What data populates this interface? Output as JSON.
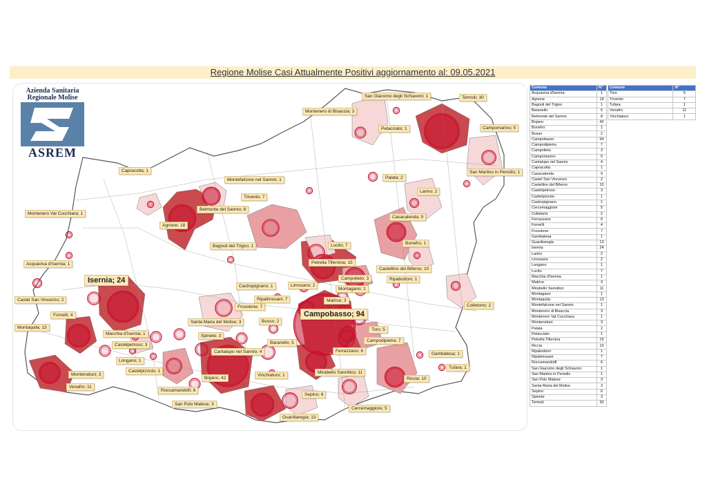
{
  "title": "Regione Molise Casi Attualmente Positivi aggiornamento al: 09.05.2021",
  "logo": {
    "line1": "Azienda Sanitaria",
    "line2": "Regionale Molise",
    "name": "ASREM"
  },
  "table": {
    "col_comune": "Comune",
    "col_n": "N°"
  },
  "comuni": [
    {
      "name": "Acquaviva d'Isernia",
      "n": 1
    },
    {
      "name": "Agnone",
      "n": 18
    },
    {
      "name": "Bagnoli del Trigno",
      "n": 1
    },
    {
      "name": "Baranello",
      "n": 5
    },
    {
      "name": "Belmonte del Sannio",
      "n": 8
    },
    {
      "name": "Bojano",
      "n": 42
    },
    {
      "name": "Bonefro",
      "n": 1
    },
    {
      "name": "Busso",
      "n": 2
    },
    {
      "name": "Campobasso",
      "n": 94
    },
    {
      "name": "Campodipietra",
      "n": 7
    },
    {
      "name": "Campolieto",
      "n": 3
    },
    {
      "name": "Campomarino",
      "n": 5
    },
    {
      "name": "Cantalupo nel Sannio",
      "n": 4
    },
    {
      "name": "Capracotta",
      "n": 1
    },
    {
      "name": "Casacalenda",
      "n": 9
    },
    {
      "name": "Castel San Vincenzo",
      "n": 2
    },
    {
      "name": "Castellino del Biferno",
      "n": 10
    },
    {
      "name": "Castelpetroso",
      "n": 3
    },
    {
      "name": "Castelpizzuto",
      "n": 1
    },
    {
      "name": "Castropignano",
      "n": 1
    },
    {
      "name": "Cercemaggiore",
      "n": 5
    },
    {
      "name": "Colletorto",
      "n": 2
    },
    {
      "name": "Ferrazzano",
      "n": 6
    },
    {
      "name": "Fornelli",
      "n": 4
    },
    {
      "name": "Frosolone",
      "n": 7
    },
    {
      "name": "Gambatesa",
      "n": 1
    },
    {
      "name": "Guardiaregia",
      "n": 13
    },
    {
      "name": "Isernia",
      "n": 24
    },
    {
      "name": "Larino",
      "n": 2
    },
    {
      "name": "Limosano",
      "n": 2
    },
    {
      "name": "Longano",
      "n": 1
    },
    {
      "name": "Lucito",
      "n": 7
    },
    {
      "name": "Macchia d'Isernia",
      "n": 1
    },
    {
      "name": "Matrice",
      "n": 3
    },
    {
      "name": "Mirabello Sannitico",
      "n": 11
    },
    {
      "name": "Montagano",
      "n": 1
    },
    {
      "name": "Montaquila",
      "n": 13
    },
    {
      "name": "Montefalcone nel Sannio",
      "n": 1
    },
    {
      "name": "Montenero di Bisaccia",
      "n": 3
    },
    {
      "name": "Montenero Val Cocchiara",
      "n": 1
    },
    {
      "name": "Monteroduni",
      "n": 3
    },
    {
      "name": "Palata",
      "n": 2
    },
    {
      "name": "Petacciato",
      "n": 1
    },
    {
      "name": "Petrella Tifernina",
      "n": 15
    },
    {
      "name": "Riccia",
      "n": 10
    },
    {
      "name": "Ripabottoni",
      "n": 1
    },
    {
      "name": "Ripalimosani",
      "n": 7
    },
    {
      "name": "Roccamandolfi",
      "n": 6
    },
    {
      "name": "San Giacomo degli Schiavoni",
      "n": 1
    },
    {
      "name": "San Martino in Pensilis",
      "n": 1
    },
    {
      "name": "San Polo Matese",
      "n": 3
    },
    {
      "name": "Santa Maria del Molise",
      "n": 3
    },
    {
      "name": "Sepino",
      "n": 6
    },
    {
      "name": "Spinete",
      "n": 3
    },
    {
      "name": "Termoli",
      "n": 30
    }
  ],
  "comuni2": [
    {
      "name": "Toro",
      "n": 5
    },
    {
      "name": "Trivento",
      "n": 7
    },
    {
      "name": "Tufara",
      "n": 1
    },
    {
      "name": "Venafro",
      "n": 11
    },
    {
      "name": "Vinchiaturo",
      "n": 1
    }
  ],
  "map_labels": [
    {
      "text": "San Giacomo degli Schiavoni; 1"
    },
    {
      "text": "Termoli; 30"
    },
    {
      "text": "Montenero di Bisaccia; 3"
    },
    {
      "text": "Petacciato; 1"
    },
    {
      "text": "Campomarino; 5"
    },
    {
      "text": "Palata; 2"
    },
    {
      "text": "San Martino in Pensilis; 1"
    },
    {
      "text": "Capracotta; 1"
    },
    {
      "text": "Montefalcone nel Sannio; 1"
    },
    {
      "text": "Trivento; 7"
    },
    {
      "text": "Larino; 2"
    },
    {
      "text": "Belmonte del Sannio; 8"
    },
    {
      "text": "Montenero Val Cocchiara; 1"
    },
    {
      "text": "Casacalenda; 9"
    },
    {
      "text": "Agnone; 18"
    },
    {
      "text": "Bagnoli del Trigno; 1"
    },
    {
      "text": "Lucito; 7"
    },
    {
      "text": "Bonefro; 1"
    },
    {
      "text": "Acquaviva d'Isernia; 1"
    },
    {
      "text": "Petrella Tifernina; 15"
    },
    {
      "text": "Castellino del Biferno; 10"
    },
    {
      "text": "Isernia; 24"
    },
    {
      "text": "Ripabottoni; 1"
    },
    {
      "text": "Castropignano; 1"
    },
    {
      "text": "Campolieto; 3"
    },
    {
      "text": "Limosano; 2"
    },
    {
      "text": "Montagano; 1"
    },
    {
      "text": "Ripalimosani; 7"
    },
    {
      "text": "Matrice; 3"
    },
    {
      "text": "Castel San Vincenzo; 2"
    },
    {
      "text": "Colletorto; 2"
    },
    {
      "text": "Frosolone; 7"
    },
    {
      "text": "Fornelli; 4"
    },
    {
      "text": "Campobasso; 94"
    },
    {
      "text": "Santa Maria del Molise; 3"
    },
    {
      "text": "Busso; 2"
    },
    {
      "text": "Montaquila; 13"
    },
    {
      "text": "Toro; 5"
    },
    {
      "text": "Macchia d'Isernia; 1"
    },
    {
      "text": "Spinete; 3"
    },
    {
      "text": "Campodipietra; 7"
    },
    {
      "text": "Baranello; 5"
    },
    {
      "text": "Castelpetroso; 3"
    },
    {
      "text": "Ferrazzano; 6"
    },
    {
      "text": "Cantalupo nel Sannio; 4"
    },
    {
      "text": "Gambatesa; 1"
    },
    {
      "text": "Longano; 1"
    },
    {
      "text": "Castelpizzuto; 1"
    },
    {
      "text": "Vinchiaturo; 1"
    },
    {
      "text": "Mirabello Sannitico; 11"
    },
    {
      "text": "Tufara; 1"
    },
    {
      "text": "Monteroduni; 3"
    },
    {
      "text": "Riccia; 10"
    },
    {
      "text": "Bojano; 42"
    },
    {
      "text": "Roccamandolfi; 6"
    },
    {
      "text": "Venafro; 11"
    },
    {
      "text": "Sepino; 6"
    },
    {
      "text": "San Polo Matese; 3"
    },
    {
      "text": "Cercemaggiore; 5"
    },
    {
      "text": "Guardiaregia; 13"
    }
  ],
  "colors": {
    "circle": "#c8102e",
    "high": "#c94a4f",
    "mid": "#e8a0a3",
    "low": "#f6d8d8",
    "label_bg": "#fde9b6",
    "header": "#4472c4",
    "title_bg": "#fcefc9"
  }
}
